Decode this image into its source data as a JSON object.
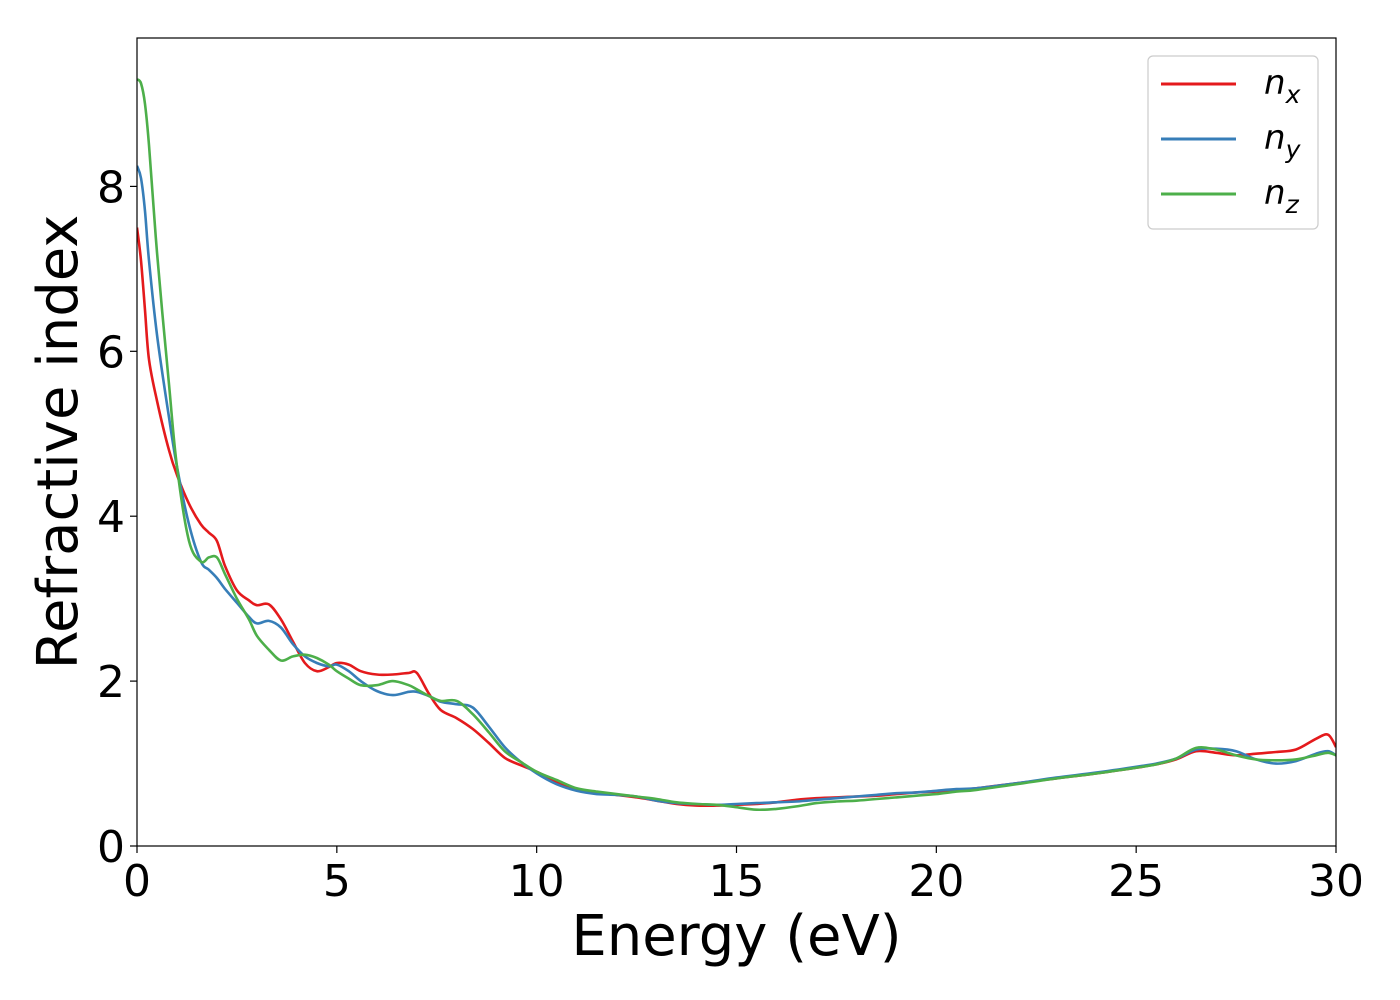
{
  "chart_data": {
    "type": "line",
    "xlabel": "Energy (eV)",
    "ylabel": "Refractive index",
    "xlim": [
      0,
      30
    ],
    "ylim": [
      0,
      9.8
    ],
    "xticks": [
      "0",
      "5",
      "10",
      "15",
      "20",
      "25",
      "30"
    ],
    "yticks": [
      "0",
      "2",
      "4",
      "6",
      "8"
    ],
    "grid": false,
    "legend_position": "top-right",
    "x": [
      0,
      0.1,
      0.2,
      0.3,
      0.5,
      0.8,
      1.0,
      1.3,
      1.6,
      1.8,
      2.0,
      2.2,
      2.5,
      2.8,
      3.0,
      3.3,
      3.6,
      3.9,
      4.2,
      4.5,
      4.8,
      5.0,
      5.3,
      5.6,
      6.0,
      6.4,
      6.8,
      7.0,
      7.3,
      7.6,
      8.0,
      8.4,
      8.8,
      9.2,
      9.6,
      10.0,
      10.5,
      11.0,
      11.5,
      12.0,
      12.5,
      13.0,
      13.5,
      14.0,
      14.5,
      15.0,
      15.5,
      16.0,
      16.5,
      17.0,
      17.5,
      18.0,
      18.5,
      19.0,
      19.5,
      20.0,
      20.5,
      21.0,
      22.0,
      23.0,
      24.0,
      25.0,
      25.5,
      26.0,
      26.5,
      27.0,
      27.5,
      28.0,
      28.5,
      29.0,
      29.5,
      29.8,
      30.0
    ],
    "series": [
      {
        "name": "n",
        "subscript": "x",
        "color": "#e41a1c",
        "values": [
          7.5,
          7.1,
          6.5,
          5.9,
          5.4,
          4.8,
          4.5,
          4.15,
          3.9,
          3.8,
          3.7,
          3.4,
          3.1,
          2.98,
          2.92,
          2.93,
          2.75,
          2.48,
          2.22,
          2.12,
          2.17,
          2.22,
          2.2,
          2.12,
          2.08,
          2.08,
          2.1,
          2.1,
          1.85,
          1.65,
          1.55,
          1.42,
          1.25,
          1.07,
          0.98,
          0.9,
          0.78,
          0.68,
          0.64,
          0.62,
          0.59,
          0.55,
          0.51,
          0.49,
          0.49,
          0.5,
          0.51,
          0.53,
          0.56,
          0.58,
          0.59,
          0.6,
          0.61,
          0.63,
          0.65,
          0.66,
          0.68,
          0.7,
          0.76,
          0.82,
          0.88,
          0.95,
          0.99,
          1.05,
          1.15,
          1.13,
          1.1,
          1.12,
          1.14,
          1.17,
          1.3,
          1.35,
          1.2
        ]
      },
      {
        "name": "n",
        "subscript": "y",
        "color": "#377eb8",
        "values": [
          8.25,
          8.1,
          7.7,
          7.1,
          6.2,
          5.2,
          4.6,
          3.9,
          3.45,
          3.35,
          3.25,
          3.12,
          2.95,
          2.78,
          2.7,
          2.73,
          2.65,
          2.45,
          2.3,
          2.22,
          2.18,
          2.2,
          2.12,
          2.0,
          1.88,
          1.83,
          1.87,
          1.87,
          1.82,
          1.75,
          1.72,
          1.68,
          1.45,
          1.2,
          1.02,
          0.88,
          0.75,
          0.67,
          0.63,
          0.62,
          0.6,
          0.55,
          0.52,
          0.51,
          0.5,
          0.51,
          0.52,
          0.53,
          0.54,
          0.56,
          0.58,
          0.6,
          0.62,
          0.64,
          0.65,
          0.67,
          0.69,
          0.7,
          0.76,
          0.83,
          0.89,
          0.96,
          1.0,
          1.06,
          1.17,
          1.18,
          1.15,
          1.05,
          1.0,
          1.03,
          1.12,
          1.15,
          1.1
        ]
      },
      {
        "name": "n",
        "subscript": "z",
        "color": "#4daf4a",
        "values": [
          9.3,
          9.25,
          9.0,
          8.5,
          7.2,
          5.6,
          4.6,
          3.7,
          3.45,
          3.5,
          3.5,
          3.3,
          3.0,
          2.75,
          2.55,
          2.38,
          2.25,
          2.3,
          2.32,
          2.28,
          2.2,
          2.12,
          2.03,
          1.95,
          1.95,
          2.0,
          1.95,
          1.9,
          1.82,
          1.76,
          1.76,
          1.6,
          1.38,
          1.15,
          1.02,
          0.9,
          0.8,
          0.7,
          0.66,
          0.63,
          0.6,
          0.57,
          0.53,
          0.51,
          0.5,
          0.47,
          0.44,
          0.45,
          0.48,
          0.52,
          0.54,
          0.55,
          0.57,
          0.59,
          0.61,
          0.63,
          0.66,
          0.68,
          0.75,
          0.82,
          0.88,
          0.95,
          0.99,
          1.06,
          1.19,
          1.17,
          1.1,
          1.05,
          1.04,
          1.05,
          1.1,
          1.13,
          1.1
        ]
      }
    ]
  }
}
